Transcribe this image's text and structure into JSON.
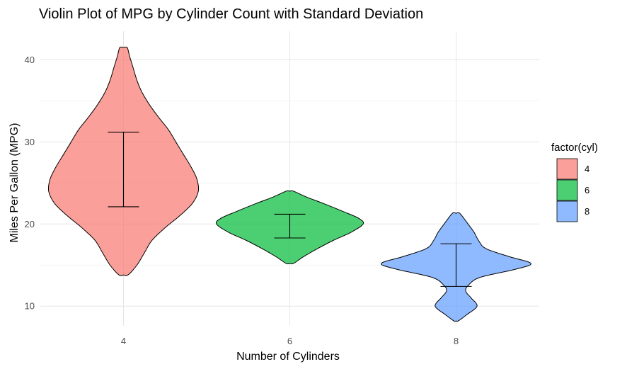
{
  "chart_data": {
    "type": "violin",
    "title": "Violin Plot of MPG by Cylinder Count with Standard Deviation",
    "xlabel": "Number of Cylinders",
    "ylabel": "Miles Per Gallon (MPG)",
    "categories": [
      "4",
      "6",
      "8"
    ],
    "ylim": [
      7.6,
      43.5
    ],
    "yticks": [
      10,
      20,
      30,
      40
    ],
    "grid": true,
    "legend": {
      "title": "factor(cyl)",
      "position": "right",
      "entries": [
        "4",
        "6",
        "8"
      ]
    },
    "colors": [
      "#F8766D",
      "#00BA38",
      "#619CFF"
    ],
    "fill_opacity": 0.7,
    "series": [
      {
        "name": "4",
        "min": 13.8,
        "max": 41.5,
        "sd_low": 22.1,
        "sd_high": 31.2,
        "density": [
          [
            13.8,
            0.06
          ],
          [
            15,
            0.18
          ],
          [
            16.5,
            0.28
          ],
          [
            18,
            0.38
          ],
          [
            19.5,
            0.55
          ],
          [
            21,
            0.75
          ],
          [
            22.5,
            0.92
          ],
          [
            24,
            1.0
          ],
          [
            25.5,
            0.98
          ],
          [
            27,
            0.9
          ],
          [
            28.5,
            0.8
          ],
          [
            30,
            0.7
          ],
          [
            31.5,
            0.6
          ],
          [
            33,
            0.47
          ],
          [
            34.5,
            0.35
          ],
          [
            36,
            0.25
          ],
          [
            37.5,
            0.18
          ],
          [
            39,
            0.13
          ],
          [
            40.5,
            0.08
          ],
          [
            41.5,
            0.05
          ]
        ]
      },
      {
        "name": "6",
        "min": 15.2,
        "max": 24.0,
        "sd_low": 18.3,
        "sd_high": 21.2,
        "density": [
          [
            15.2,
            0.05
          ],
          [
            16.0,
            0.18
          ],
          [
            17.0,
            0.37
          ],
          [
            18.0,
            0.58
          ],
          [
            19.0,
            0.82
          ],
          [
            20.0,
            0.98
          ],
          [
            20.7,
            0.92
          ],
          [
            21.5,
            0.72
          ],
          [
            22.5,
            0.45
          ],
          [
            23.3,
            0.22
          ],
          [
            24.0,
            0.05
          ]
        ]
      },
      {
        "name": "8",
        "min": 8.2,
        "max": 21.3,
        "sd_low": 12.4,
        "sd_high": 17.6,
        "density": [
          [
            8.2,
            0.03
          ],
          [
            9.0,
            0.15
          ],
          [
            10.0,
            0.28
          ],
          [
            11.0,
            0.2
          ],
          [
            11.8,
            0.13
          ],
          [
            12.5,
            0.16
          ],
          [
            13.5,
            0.32
          ],
          [
            14.5,
            0.8
          ],
          [
            15.2,
            1.0
          ],
          [
            16.0,
            0.72
          ],
          [
            17.0,
            0.4
          ],
          [
            18.0,
            0.3
          ],
          [
            19.0,
            0.24
          ],
          [
            20.0,
            0.16
          ],
          [
            21.3,
            0.05
          ]
        ]
      }
    ]
  }
}
